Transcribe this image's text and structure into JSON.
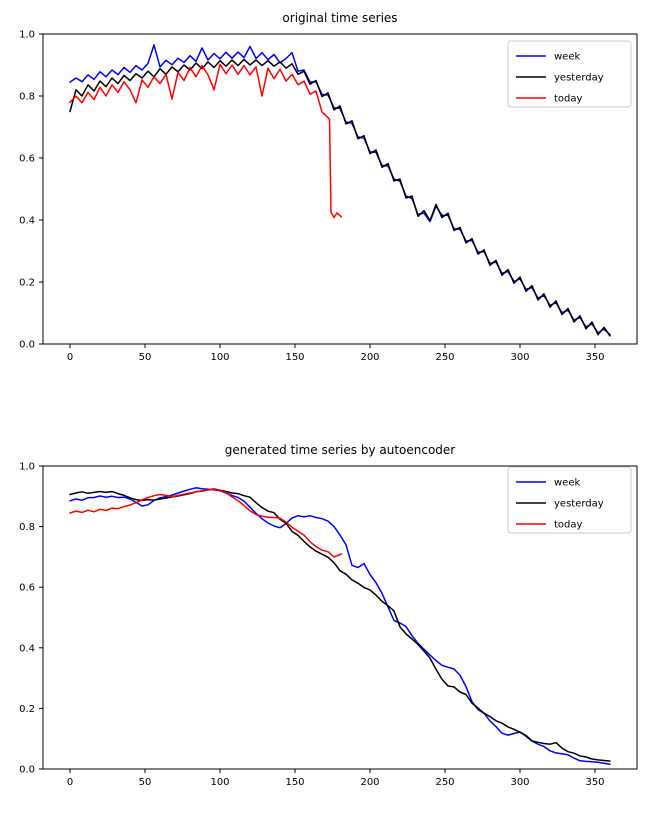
{
  "figure": {
    "background": "#ffffff",
    "text_color": "#000000",
    "frame_color": "#000000",
    "legend_border_color": "#cccccc",
    "legend_background": "#ffffff"
  },
  "chart_data": [
    {
      "type": "line",
      "title": "original time series",
      "xlabel": "",
      "ylabel": "",
      "xlim": [
        -18,
        378
      ],
      "ylim": [
        0.0,
        1.0
      ],
      "x_ticks": [
        0,
        50,
        100,
        150,
        200,
        250,
        300,
        350
      ],
      "x_tick_labels": [
        "0",
        "50",
        "100",
        "150",
        "200",
        "250",
        "300",
        "350"
      ],
      "y_ticks": [
        0.0,
        0.2,
        0.4,
        0.6,
        0.8,
        1.0
      ],
      "y_tick_labels": [
        "0.0",
        "0.2",
        "0.4",
        "0.6",
        "0.8",
        "1.0"
      ],
      "grid": false,
      "legend_position": "upper right",
      "series": [
        {
          "name": "week",
          "color": "#0000ff",
          "x": [
            0,
            4,
            8,
            12,
            16,
            20,
            24,
            28,
            32,
            36,
            40,
            44,
            48,
            52,
            56,
            60,
            64,
            68,
            72,
            76,
            80,
            84,
            88,
            92,
            96,
            100,
            104,
            108,
            112,
            116,
            120,
            124,
            128,
            132,
            136,
            140,
            144,
            148,
            152,
            156,
            160,
            164,
            168,
            172,
            176,
            180,
            184,
            188,
            192,
            196,
            200,
            204,
            208,
            212,
            216,
            220,
            224,
            228,
            232,
            236,
            240,
            244,
            248,
            252,
            256,
            260,
            264,
            268,
            272,
            276,
            280,
            284,
            288,
            292,
            296,
            300,
            304,
            308,
            312,
            316,
            320,
            324,
            328,
            332,
            336,
            340,
            344,
            348,
            352,
            356,
            360
          ],
          "y": [
            0.845,
            0.858,
            0.846,
            0.868,
            0.854,
            0.878,
            0.862,
            0.884,
            0.869,
            0.892,
            0.876,
            0.898,
            0.884,
            0.905,
            0.965,
            0.894,
            0.915,
            0.901,
            0.922,
            0.908,
            0.93,
            0.912,
            0.955,
            0.916,
            0.937,
            0.92,
            0.941,
            0.922,
            0.942,
            0.924,
            0.96,
            0.921,
            0.94,
            0.917,
            0.934,
            0.907,
            0.921,
            0.94,
            0.88,
            0.884,
            0.845,
            0.846,
            0.805,
            0.803,
            0.762,
            0.76,
            0.716,
            0.712,
            0.668,
            0.664,
            0.62,
            0.618,
            0.576,
            0.574,
            0.532,
            0.525,
            0.477,
            0.469,
            0.418,
            0.422,
            0.395,
            0.445,
            0.415,
            0.415,
            0.372,
            0.37,
            0.332,
            0.334,
            0.296,
            0.298,
            0.26,
            0.264,
            0.228,
            0.234,
            0.202,
            0.21,
            0.176,
            0.182,
            0.148,
            0.156,
            0.125,
            0.133,
            0.101,
            0.109,
            0.077,
            0.085,
            0.055,
            0.065,
            0.036,
            0.048,
            0.03
          ]
        },
        {
          "name": "yesterday",
          "color": "#000000",
          "x": [
            0,
            4,
            8,
            12,
            16,
            20,
            24,
            28,
            32,
            36,
            40,
            44,
            48,
            52,
            56,
            60,
            64,
            68,
            72,
            76,
            80,
            84,
            88,
            92,
            96,
            100,
            104,
            108,
            112,
            116,
            120,
            124,
            128,
            132,
            136,
            140,
            144,
            148,
            152,
            156,
            160,
            164,
            168,
            172,
            176,
            180,
            184,
            188,
            192,
            196,
            200,
            204,
            208,
            212,
            216,
            220,
            224,
            228,
            232,
            236,
            240,
            244,
            248,
            252,
            256,
            260,
            264,
            268,
            272,
            276,
            280,
            284,
            288,
            292,
            296,
            300,
            304,
            308,
            312,
            316,
            320,
            324,
            328,
            332,
            336,
            340,
            344,
            348,
            352,
            356,
            360
          ],
          "y": [
            0.75,
            0.82,
            0.8,
            0.836,
            0.816,
            0.848,
            0.83,
            0.858,
            0.84,
            0.866,
            0.85,
            0.872,
            0.858,
            0.88,
            0.862,
            0.888,
            0.87,
            0.894,
            0.878,
            0.9,
            0.884,
            0.906,
            0.888,
            0.91,
            0.892,
            0.914,
            0.896,
            0.916,
            0.898,
            0.918,
            0.9,
            0.916,
            0.898,
            0.914,
            0.896,
            0.91,
            0.89,
            0.904,
            0.87,
            0.88,
            0.838,
            0.85,
            0.798,
            0.81,
            0.755,
            0.768,
            0.71,
            0.72,
            0.662,
            0.672,
            0.614,
            0.626,
            0.57,
            0.582,
            0.526,
            0.532,
            0.471,
            0.477,
            0.412,
            0.43,
            0.398,
            0.45,
            0.408,
            0.422,
            0.366,
            0.376,
            0.326,
            0.34,
            0.29,
            0.304,
            0.254,
            0.27,
            0.222,
            0.24,
            0.196,
            0.216,
            0.17,
            0.188,
            0.142,
            0.162,
            0.119,
            0.139,
            0.095,
            0.115,
            0.071,
            0.091,
            0.049,
            0.071,
            0.03,
            0.054,
            0.026
          ]
        },
        {
          "name": "today",
          "color": "#ff0000",
          "x": [
            0,
            4,
            8,
            12,
            16,
            20,
            24,
            28,
            32,
            36,
            40,
            44,
            48,
            52,
            56,
            60,
            64,
            68,
            72,
            76,
            80,
            84,
            88,
            92,
            96,
            100,
            104,
            108,
            112,
            116,
            120,
            124,
            128,
            132,
            136,
            140,
            144,
            148,
            152,
            156,
            160,
            164,
            168,
            172,
            173,
            174,
            176,
            178,
            181
          ],
          "y": [
            0.78,
            0.8,
            0.778,
            0.812,
            0.788,
            0.828,
            0.8,
            0.836,
            0.812,
            0.846,
            0.82,
            0.778,
            0.852,
            0.828,
            0.862,
            0.84,
            0.87,
            0.79,
            0.876,
            0.85,
            0.892,
            0.862,
            0.898,
            0.868,
            0.82,
            0.902,
            0.872,
            0.9,
            0.87,
            0.898,
            0.868,
            0.894,
            0.8,
            0.89,
            0.856,
            0.886,
            0.848,
            0.87,
            0.836,
            0.848,
            0.806,
            0.816,
            0.748,
            0.73,
            0.725,
            0.425,
            0.408,
            0.423,
            0.41
          ]
        }
      ]
    },
    {
      "type": "line",
      "title": "generated time series by autoencoder",
      "xlabel": "",
      "ylabel": "",
      "xlim": [
        -18,
        378
      ],
      "ylim": [
        0.0,
        1.0
      ],
      "x_ticks": [
        0,
        50,
        100,
        150,
        200,
        250,
        300,
        350
      ],
      "x_tick_labels": [
        "0",
        "50",
        "100",
        "150",
        "200",
        "250",
        "300",
        "350"
      ],
      "y_ticks": [
        0.0,
        0.2,
        0.4,
        0.6,
        0.8,
        1.0
      ],
      "y_tick_labels": [
        "0.0",
        "0.2",
        "0.4",
        "0.6",
        "0.8",
        "1.0"
      ],
      "grid": false,
      "legend_position": "upper right",
      "series": [
        {
          "name": "week",
          "color": "#0000ff",
          "x": [
            0,
            4,
            8,
            12,
            16,
            20,
            24,
            28,
            32,
            36,
            40,
            44,
            48,
            52,
            56,
            60,
            64,
            68,
            72,
            76,
            80,
            84,
            88,
            92,
            96,
            100,
            104,
            108,
            112,
            116,
            120,
            124,
            128,
            132,
            136,
            140,
            144,
            148,
            152,
            156,
            160,
            164,
            168,
            172,
            176,
            180,
            184,
            188,
            192,
            196,
            200,
            204,
            208,
            212,
            216,
            220,
            224,
            228,
            232,
            236,
            240,
            244,
            248,
            252,
            256,
            260,
            264,
            268,
            272,
            276,
            280,
            284,
            288,
            292,
            296,
            300,
            304,
            308,
            312,
            316,
            320,
            324,
            328,
            332,
            336,
            340,
            344,
            348,
            352,
            356,
            360
          ],
          "y": [
            0.885,
            0.891,
            0.887,
            0.895,
            0.896,
            0.901,
            0.897,
            0.9,
            0.896,
            0.897,
            0.891,
            0.88,
            0.868,
            0.872,
            0.886,
            0.895,
            0.899,
            0.904,
            0.911,
            0.917,
            0.923,
            0.928,
            0.925,
            0.923,
            0.921,
            0.918,
            0.911,
            0.903,
            0.896,
            0.884,
            0.864,
            0.844,
            0.826,
            0.812,
            0.802,
            0.796,
            0.81,
            0.828,
            0.836,
            0.832,
            0.836,
            0.83,
            0.826,
            0.818,
            0.8,
            0.772,
            0.74,
            0.672,
            0.665,
            0.678,
            0.642,
            0.615,
            0.58,
            0.535,
            0.49,
            0.482,
            0.47,
            0.44,
            0.415,
            0.395,
            0.376,
            0.358,
            0.342,
            0.336,
            0.33,
            0.31,
            0.272,
            0.222,
            0.196,
            0.184,
            0.158,
            0.14,
            0.118,
            0.112,
            0.117,
            0.122,
            0.108,
            0.092,
            0.082,
            0.074,
            0.06,
            0.053,
            0.05,
            0.047,
            0.036,
            0.027,
            0.025,
            0.024,
            0.022,
            0.019,
            0.016
          ]
        },
        {
          "name": "yesterday",
          "color": "#000000",
          "x": [
            0,
            4,
            8,
            12,
            16,
            20,
            24,
            28,
            32,
            36,
            40,
            44,
            48,
            52,
            56,
            60,
            64,
            68,
            72,
            76,
            80,
            84,
            88,
            92,
            96,
            100,
            104,
            108,
            112,
            116,
            120,
            124,
            128,
            132,
            136,
            140,
            144,
            148,
            152,
            156,
            160,
            164,
            168,
            172,
            176,
            180,
            184,
            188,
            192,
            196,
            200,
            204,
            208,
            212,
            216,
            220,
            224,
            228,
            232,
            236,
            240,
            244,
            248,
            252,
            256,
            260,
            264,
            268,
            272,
            276,
            280,
            284,
            288,
            292,
            296,
            300,
            304,
            308,
            312,
            316,
            320,
            324,
            328,
            332,
            336,
            340,
            344,
            348,
            352,
            356,
            360
          ],
          "y": [
            0.906,
            0.911,
            0.915,
            0.91,
            0.913,
            0.916,
            0.913,
            0.916,
            0.909,
            0.903,
            0.895,
            0.889,
            0.886,
            0.889,
            0.887,
            0.891,
            0.894,
            0.898,
            0.901,
            0.905,
            0.909,
            0.915,
            0.917,
            0.921,
            0.924,
            0.92,
            0.916,
            0.911,
            0.909,
            0.902,
            0.897,
            0.879,
            0.863,
            0.851,
            0.846,
            0.824,
            0.811,
            0.784,
            0.771,
            0.751,
            0.733,
            0.719,
            0.709,
            0.699,
            0.681,
            0.654,
            0.643,
            0.624,
            0.613,
            0.599,
            0.591,
            0.574,
            0.553,
            0.539,
            0.521,
            0.469,
            0.446,
            0.429,
            0.411,
            0.389,
            0.366,
            0.329,
            0.296,
            0.274,
            0.271,
            0.254,
            0.246,
            0.217,
            0.201,
            0.184,
            0.173,
            0.159,
            0.151,
            0.139,
            0.131,
            0.121,
            0.111,
            0.093,
            0.088,
            0.084,
            0.082,
            0.087,
            0.069,
            0.057,
            0.052,
            0.043,
            0.04,
            0.033,
            0.03,
            0.028,
            0.026
          ]
        },
        {
          "name": "today",
          "color": "#ff0000",
          "x": [
            0,
            4,
            8,
            12,
            16,
            20,
            24,
            28,
            32,
            36,
            40,
            44,
            48,
            52,
            56,
            60,
            64,
            68,
            72,
            76,
            80,
            84,
            88,
            92,
            96,
            100,
            104,
            108,
            112,
            116,
            120,
            124,
            128,
            132,
            136,
            140,
            144,
            148,
            152,
            156,
            160,
            164,
            168,
            172,
            176,
            180,
            181
          ],
          "y": [
            0.845,
            0.851,
            0.847,
            0.854,
            0.849,
            0.857,
            0.853,
            0.861,
            0.859,
            0.866,
            0.871,
            0.879,
            0.888,
            0.896,
            0.902,
            0.906,
            0.903,
            0.899,
            0.903,
            0.907,
            0.911,
            0.915,
            0.918,
            0.921,
            0.922,
            0.919,
            0.912,
            0.898,
            0.885,
            0.87,
            0.852,
            0.84,
            0.834,
            0.831,
            0.83,
            0.828,
            0.815,
            0.798,
            0.785,
            0.772,
            0.75,
            0.734,
            0.722,
            0.717,
            0.7,
            0.708,
            0.71
          ]
        }
      ]
    }
  ]
}
